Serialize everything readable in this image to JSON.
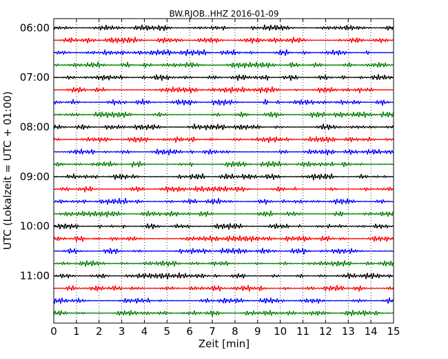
{
  "chart_data": {
    "type": "line",
    "title": "BW.RJOB..HHZ 2016-01-09",
    "xlabel": "Zeit  [min]",
    "ylabel": "UTC (Lokalzeit = UTC + 01:00)",
    "xlim": [
      0,
      15
    ],
    "x_ticks": [
      "0",
      "1",
      "2",
      "3",
      "4",
      "5",
      "6",
      "7",
      "8",
      "9",
      "10",
      "11",
      "12",
      "13",
      "14",
      "15"
    ],
    "y_tick_labels": [
      "06:00",
      "07:00",
      "08:00",
      "09:00",
      "10:00",
      "11:00"
    ],
    "grid": "vertical dotted",
    "trace_count": 24,
    "trace_interval_minutes": 15,
    "first_trace_start": "06:00",
    "trace_colors": [
      "#000000",
      "#ff0000",
      "#0000ff",
      "#008000"
    ]
  }
}
